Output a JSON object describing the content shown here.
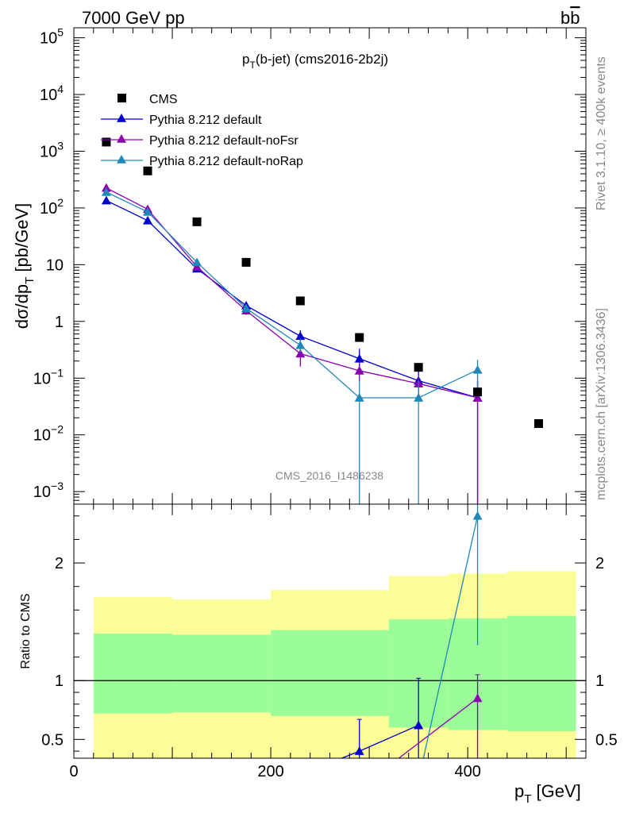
{
  "header": {
    "left": "7000 GeV pp",
    "right_main": "b",
    "right_bar": "b"
  },
  "side_labels": {
    "rivet": "Rivet 3.1.10, ≥ 400k events",
    "mcplots": "mcplots.cern.ch [arXiv:1306.3436]"
  },
  "watermark": "CMS_2016_I1486238",
  "chart_data": [
    {
      "type": "scatter",
      "panel": "main",
      "title": {
        "p": "p",
        "sub": "T",
        "rest": "(b-jet) (cms2016-2b2j)"
      },
      "ylabel": {
        "a": "dσ/dp",
        "sub": "T",
        "b": " [pb/GeV]"
      },
      "yscale": "log",
      "ylim": [
        0.0006,
        150000
      ],
      "xlim": [
        0,
        520
      ],
      "yticks": [
        {
          "v": 100000,
          "base": "10",
          "exp": "5"
        },
        {
          "v": 10000,
          "base": "10",
          "exp": "4"
        },
        {
          "v": 1000,
          "base": "10",
          "exp": "3"
        },
        {
          "v": 100,
          "base": "10",
          "exp": "2"
        },
        {
          "v": 10,
          "base": "10",
          "exp": ""
        },
        {
          "v": 1,
          "base": "1",
          "exp": ""
        },
        {
          "v": 0.1,
          "base": "10",
          "exp": "−1"
        },
        {
          "v": 0.01,
          "base": "10",
          "exp": "−2"
        },
        {
          "v": 0.001,
          "base": "10",
          "exp": "−3"
        }
      ],
      "legend_position": "top-left",
      "series": [
        {
          "name": "CMS",
          "color": "#000000",
          "marker": "square",
          "x": [
            33,
            75,
            125,
            175,
            230,
            290,
            350,
            410,
            472
          ],
          "y": [
            1450,
            450,
            57,
            11,
            2.3,
            0.52,
            0.155,
            0.057,
            0.0158
          ]
        },
        {
          "name": "Pythia 8.212 default",
          "color": "#0000cc",
          "marker": "triangle",
          "x": [
            33,
            75,
            125,
            175,
            230,
            290,
            350,
            410
          ],
          "y": [
            135,
            60,
            8.5,
            1.9,
            0.55,
            0.22,
            0.09,
            0.045
          ],
          "err": [
            [
              125,
              145
            ],
            [
              55,
              65
            ],
            [
              8.0,
              9.0
            ],
            [
              1.6,
              2.2
            ],
            [
              0.42,
              0.7
            ],
            [
              0.15,
              0.33
            ],
            [
              0.05,
              0.13
            ],
            [
              0.0002,
              0.09
            ]
          ]
        },
        {
          "name": "Pythia 8.212 default-noFsr",
          "color": "#8a00b0",
          "marker": "triangle",
          "x": [
            33,
            75,
            125,
            175,
            230,
            290,
            350,
            410
          ],
          "y": [
            225,
            95,
            9.2,
            1.55,
            0.27,
            0.135,
            0.08,
            0.045
          ],
          "err": [
            [
              210,
              240
            ],
            [
              88,
              102
            ],
            [
              8.6,
              9.8
            ],
            [
              1.3,
              1.8
            ],
            [
              0.16,
              0.38
            ],
            [
              0.09,
              0.19
            ],
            [
              0.05,
              0.11
            ],
            [
              0.0002,
              0.09
            ]
          ]
        },
        {
          "name": "Pythia 8.212 default-noRap",
          "color": "#1f88b8",
          "marker": "triangle",
          "x": [
            33,
            75,
            125,
            175,
            230,
            290,
            350,
            410
          ],
          "y": [
            190,
            85,
            11,
            1.7,
            0.38,
            0.045,
            0.045,
            0.14
          ],
          "err": [
            [
              178,
              202
            ],
            [
              79,
              91
            ],
            [
              10.3,
              11.7
            ],
            [
              1.45,
              1.95
            ],
            [
              0.28,
              0.5
            ],
            [
              0.0002,
              0.09
            ],
            [
              0.0002,
              0.09
            ],
            [
              0.07,
              0.21
            ]
          ]
        }
      ]
    },
    {
      "type": "scatter",
      "panel": "ratio",
      "ylabel": "Ratio to CMS",
      "xlabel": {
        "p": "p",
        "sub": "T",
        "rest": " [GeV]"
      },
      "xlim": [
        0,
        520
      ],
      "ylim": [
        0.34,
        2.5
      ],
      "xticks": [
        0,
        200,
        400
      ],
      "yticks": [
        0.5,
        1,
        2
      ],
      "bands": [
        {
          "x0": 20,
          "x1": 100,
          "outer": [
            0.33,
            1.71
          ],
          "inner": [
            0.72,
            1.4
          ]
        },
        {
          "x0": 100,
          "x1": 200,
          "outer": [
            0.33,
            1.69
          ],
          "inner": [
            0.73,
            1.39
          ]
        },
        {
          "x0": 200,
          "x1": 320,
          "outer": [
            0.33,
            1.77
          ],
          "inner": [
            0.7,
            1.43
          ]
        },
        {
          "x0": 320,
          "x1": 380,
          "outer": [
            0.33,
            1.89
          ],
          "inner": [
            0.6,
            1.52
          ]
        },
        {
          "x0": 380,
          "x1": 440,
          "outer": [
            0.33,
            1.91
          ],
          "inner": [
            0.58,
            1.53
          ]
        },
        {
          "x0": 440,
          "x1": 510,
          "outer": [
            0.33,
            1.93
          ],
          "inner": [
            0.57,
            1.55
          ]
        }
      ],
      "band_colors": {
        "outer": "#fdfd98",
        "inner": "#9afd98"
      },
      "series": [
        {
          "name": "Pythia 8.212 default",
          "color": "#0000cc",
          "x": [
            290,
            350
          ],
          "y": [
            0.4,
            0.62
          ],
          "err": [
            [
              0.2,
              0.67
            ],
            [
              0.25,
              1.02
            ]
          ],
          "line_from": [
            {
              "x": 272,
              "y": 0.25
            }
          ],
          "line_to": []
        },
        {
          "name": "Pythia 8.212 default-noFsr",
          "color": "#8a00b0",
          "x": [
            410
          ],
          "y": [
            0.85
          ],
          "err": [
            [
              0.0,
              1.05
            ]
          ],
          "line_from": [
            {
              "x": 330,
              "y": 0.25
            }
          ],
          "line_to": []
        },
        {
          "name": "Pythia 8.212 default-noRap",
          "color": "#1f88b8",
          "x": [
            410
          ],
          "y": [
            2.4
          ],
          "err": [
            [
              1.3,
              3.0
            ]
          ],
          "line_from": [
            {
              "x": 355,
              "y": 0.25
            }
          ],
          "line_to": []
        }
      ]
    }
  ]
}
